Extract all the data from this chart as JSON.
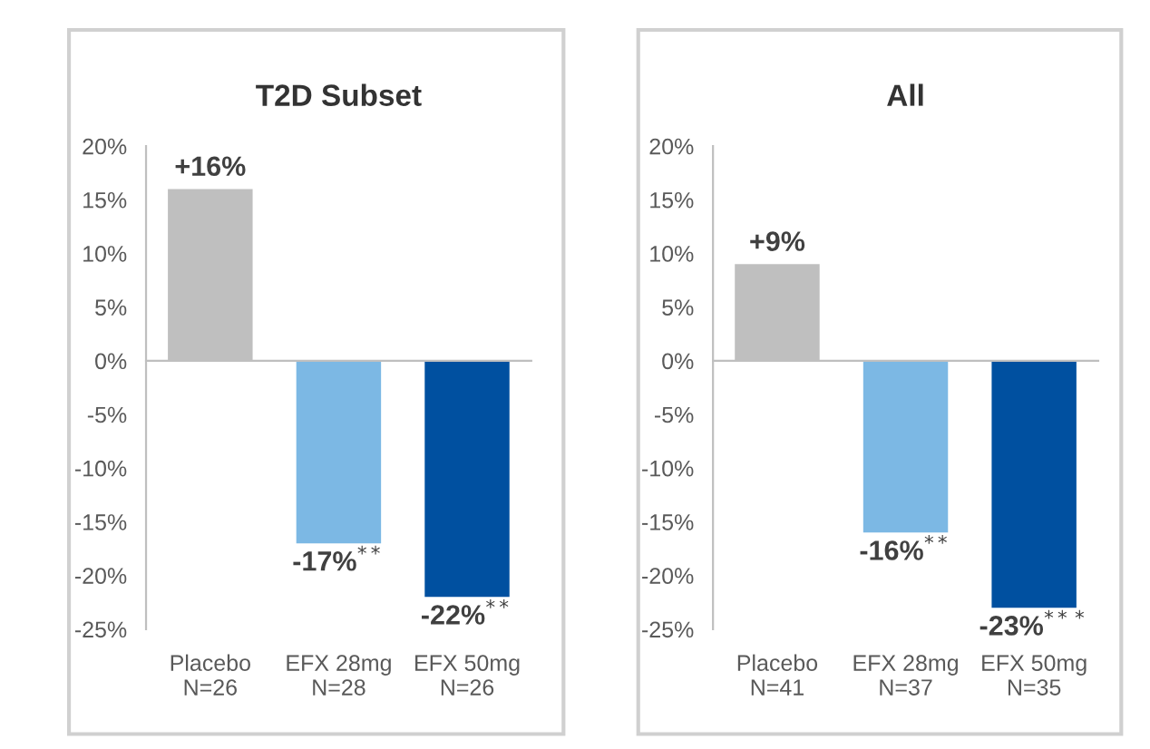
{
  "chart_data": [
    {
      "type": "bar",
      "title": "T2D Subset",
      "categories": [
        "Placebo\nN=26",
        "EFX 28mg\nN=28",
        "EFX 50mg\nN=26"
      ],
      "values": [
        16,
        -17,
        -22
      ],
      "colors": [
        "#bfbfbf",
        "#7cb8e4",
        "#0050a0"
      ],
      "value_labels": [
        "+16%",
        "-17%$^{**}$",
        "-22%$^{**}$"
      ],
      "ylim": [
        -25,
        20
      ],
      "yticks": [
        {
          "value": 20,
          "label": "20%"
        },
        {
          "value": 15,
          "label": "15%"
        },
        {
          "value": 10,
          "label": "10%"
        },
        {
          "value": 5,
          "label": "5%"
        },
        {
          "value": 0,
          "label": "0%"
        },
        {
          "value": -5,
          "label": "-5%"
        },
        {
          "value": -10,
          "label": "-10%"
        },
        {
          "value": -15,
          "label": "-15%"
        },
        {
          "value": -20,
          "label": "-20%"
        },
        {
          "value": -25,
          "label": "-25%"
        }
      ],
      "legend": false
    },
    {
      "type": "bar",
      "title": "All",
      "categories": [
        "Placebo\nN=41",
        "EFX 28mg\nN=37",
        "EFX 50mg\nN=35"
      ],
      "values": [
        9,
        -16,
        -23
      ],
      "colors": [
        "#bfbfbf",
        "#7cb8e4",
        "#0050a0"
      ],
      "value_labels": [
        "+9%",
        "-16%$^{**}$",
        "-23%$^{***}$"
      ],
      "ylim": [
        -25,
        20
      ],
      "yticks": [
        {
          "value": 20,
          "label": "20%"
        },
        {
          "value": 15,
          "label": "15%"
        },
        {
          "value": 10,
          "label": "10%"
        },
        {
          "value": 5,
          "label": "5%"
        },
        {
          "value": 0,
          "label": "0%"
        },
        {
          "value": -5,
          "label": "-5%"
        },
        {
          "value": -10,
          "label": "-10%"
        },
        {
          "value": -15,
          "label": "-15%"
        },
        {
          "value": -20,
          "label": "-20%"
        },
        {
          "value": -25,
          "label": "-25%"
        }
      ],
      "legend": false
    }
  ]
}
